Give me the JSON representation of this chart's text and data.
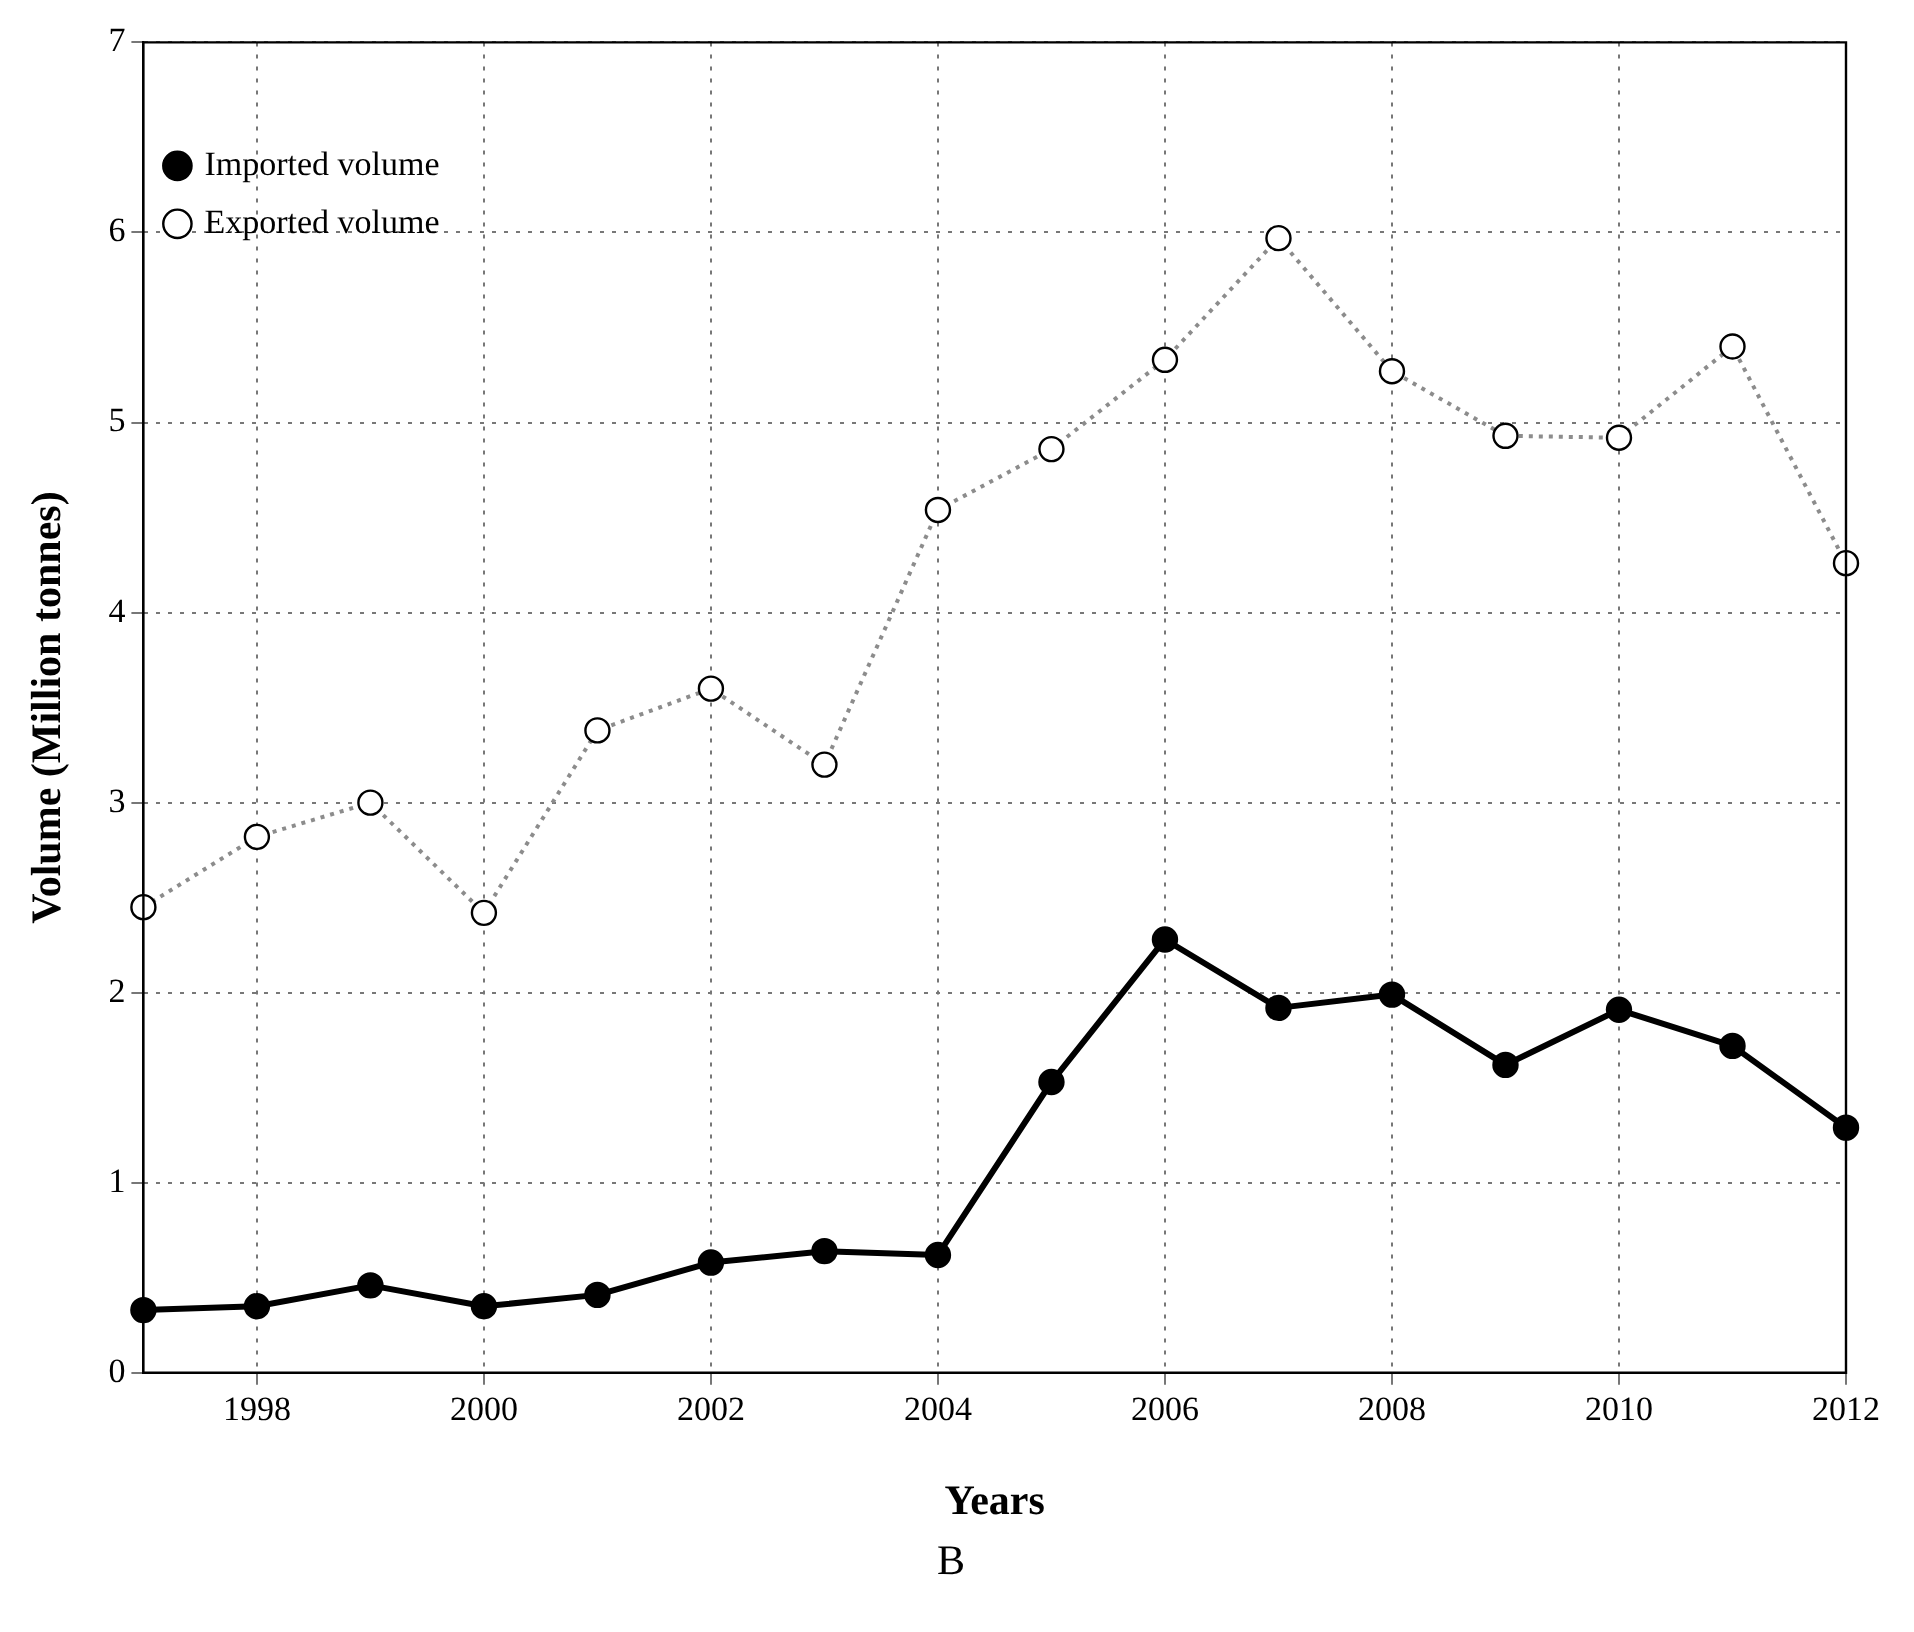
{
  "chart_data": {
    "type": "line",
    "xlabel": "Years",
    "ylabel": "Volume (Million tonnes)",
    "annotations": [
      "B"
    ],
    "x": [
      1997,
      1998,
      1999,
      2000,
      2001,
      2002,
      2003,
      2004,
      2005,
      2006,
      2007,
      2008,
      2009,
      2010,
      2011,
      2012
    ],
    "series": [
      {
        "name": "Imported volume",
        "color": "#000000",
        "line_style": "solid",
        "values": [
          0.33,
          0.35,
          0.46,
          0.35,
          0.41,
          0.58,
          0.64,
          0.62,
          1.53,
          2.28,
          1.92,
          1.99,
          1.62,
          1.91,
          1.72,
          1.29
        ]
      },
      {
        "name": "Exported volume",
        "color": "#8c8c8c",
        "line_style": "dotted",
        "values": [
          2.45,
          2.82,
          3.0,
          2.42,
          3.38,
          3.6,
          3.2,
          4.54,
          4.86,
          5.33,
          5.97,
          5.27,
          4.93,
          4.92,
          5.4,
          4.26
        ]
      }
    ],
    "xlim": [
      1997,
      2012
    ],
    "xticks": [
      1998,
      2000,
      2002,
      2004,
      2006,
      2008,
      2010,
      2012
    ],
    "ylim": [
      0,
      7
    ],
    "yticks": [
      0,
      1,
      2,
      3,
      4,
      5,
      6,
      7
    ],
    "grid": true,
    "legend": "top left",
    "marker": "circle"
  }
}
